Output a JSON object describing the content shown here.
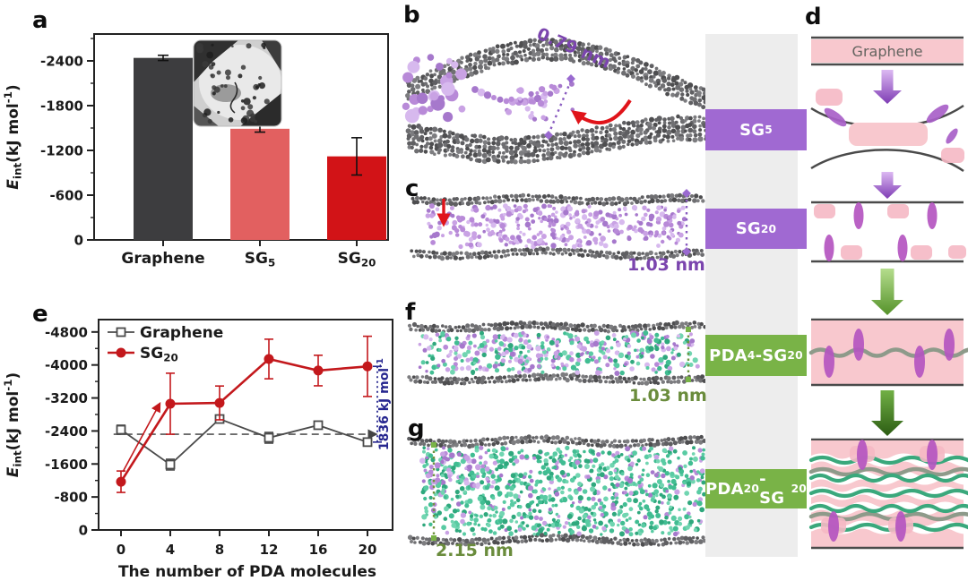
{
  "figure": {
    "panel_labels": {
      "a": "a",
      "b": "b",
      "c": "c",
      "d": "d",
      "e": "e",
      "f": "f",
      "g": "g"
    }
  },
  "colors": {
    "bar_graphene": "#3d3d3f",
    "bar_sg5": "#e26060",
    "bar_sg20": "#d21317",
    "line_graphene": "#4a4a4a",
    "line_sg20": "#c3181c",
    "navy_annotation": "#26268f",
    "purple_text": "#7b45ae",
    "green_text": "#6a8c3c",
    "purple_box": "#a069d2",
    "green_box": "#79b347",
    "strip_bg": "#ededed",
    "schematic_pink": "#f8c8ce"
  },
  "side_labels": [
    {
      "parts": [
        {
          "t": "SG"
        },
        {
          "s": "5"
        }
      ]
    },
    {
      "parts": [
        {
          "t": "SG"
        },
        {
          "s": "20"
        }
      ]
    },
    {
      "parts": [
        {
          "t": "PDA"
        },
        {
          "s": "4"
        },
        {
          "t": "-SG"
        },
        {
          "s": "20"
        }
      ]
    },
    {
      "parts": [
        {
          "t": "PDA"
        },
        {
          "s": "20"
        },
        {
          "t": "-SG"
        },
        {
          "s": "20"
        }
      ]
    }
  ],
  "distance_labels": {
    "b": "0.79 nm",
    "c": "1.03 nm",
    "f": "1.03 nm",
    "g": "2.15 nm"
  },
  "schematic": {
    "graphene_label": "Graphene"
  },
  "chart_data": [
    {
      "id": "a",
      "type": "bar",
      "ylabel": "Eint (kJ mol-1)",
      "ylabel_rich": [
        {
          "t": "E",
          "i": true
        },
        {
          "s": "int"
        },
        {
          "t": "(kJ mol"
        },
        {
          "sup": "-1"
        },
        {
          "t": ")"
        }
      ],
      "categories": [
        "Graphene",
        "SG5",
        "SG20"
      ],
      "categories_rich": [
        [
          {
            "t": "Graphene"
          }
        ],
        [
          {
            "t": "SG"
          },
          {
            "s": "5"
          }
        ],
        [
          {
            "t": "SG"
          },
          {
            "s": "20"
          }
        ]
      ],
      "values": [
        -2440,
        -1490,
        -1120
      ],
      "errors": [
        35,
        45,
        250
      ],
      "colors": [
        "#3d3d3f",
        "#e26060",
        "#d21317"
      ],
      "ylim": [
        0,
        -2760
      ],
      "yticks": [
        0,
        -600,
        -1200,
        -1800,
        -2400
      ],
      "grid": false,
      "has_inset_image": true
    },
    {
      "id": "e",
      "type": "line",
      "xlabel": "The number of PDA molecules",
      "ylabel": "Eint (kJ mol-1)",
      "ylabel_rich": [
        {
          "t": "E",
          "i": true
        },
        {
          "s": "int"
        },
        {
          "t": "(kJ mol"
        },
        {
          "sup": "-1"
        },
        {
          "t": ")"
        }
      ],
      "x": [
        0,
        4,
        8,
        12,
        16,
        20
      ],
      "xticks": [
        0,
        4,
        8,
        12,
        16,
        20
      ],
      "ylim": [
        0,
        -5100
      ],
      "yticks": [
        0,
        -800,
        -1600,
        -2400,
        -3200,
        -4000,
        -4800
      ],
      "grid": false,
      "legend_position": "top-left",
      "series": [
        {
          "name": "Graphene",
          "name_rich": [
            {
              "t": "Graphene"
            }
          ],
          "color": "#4a4a4a",
          "marker": "open-square",
          "values": [
            -2430,
            -1585,
            -2690,
            -2235,
            -2540,
            -2130
          ],
          "errors": [
            110,
            130,
            90,
            130,
            90,
            90
          ]
        },
        {
          "name": "SG20",
          "name_rich": [
            {
              "t": "SG"
            },
            {
              "s": "20"
            }
          ],
          "color": "#c3181c",
          "marker": "filled-circle",
          "values": [
            -1170,
            -3060,
            -3080,
            -4145,
            -3865,
            -3966
          ],
          "errors": [
            260,
            740,
            410,
            480,
            370,
            730
          ]
        }
      ],
      "annotations": {
        "dashed_line_y": -2320,
        "dashed_color": "#555555",
        "diff_line": {
          "x": 20.8,
          "from": -3966,
          "to": -2130,
          "label": "1836 kJ mol-1",
          "label_rich": [
            {
              "t": "1836 kJ mol"
            },
            {
              "sup": "-1"
            }
          ],
          "color": "#26268f"
        },
        "trend_arrow": {
          "x1": 0.15,
          "y1": -1410,
          "x2": 3.1,
          "y2": -3040,
          "color": "#c3181c"
        }
      }
    }
  ]
}
